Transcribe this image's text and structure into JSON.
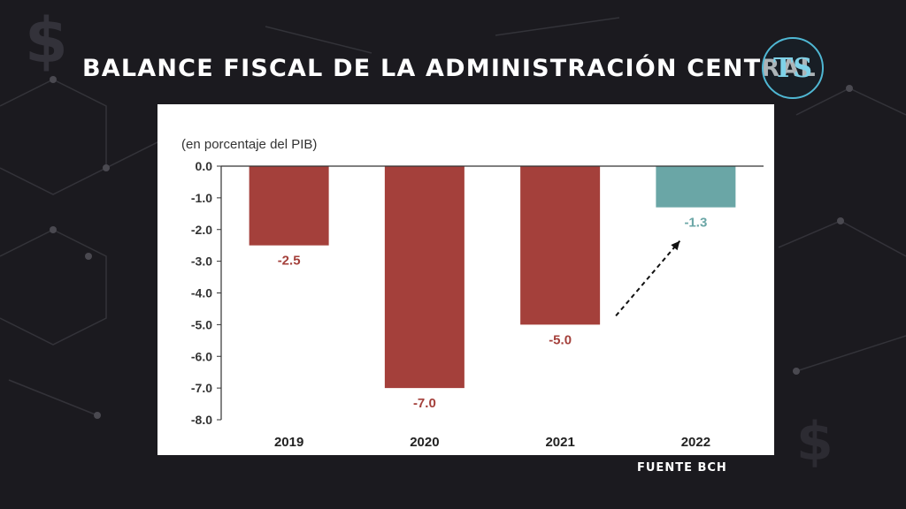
{
  "header": {
    "title": "BALANCE FISCAL DE LA ADMINISTRACIÓN CENTRAL",
    "logo_text": "TS"
  },
  "footer": {
    "source": "FUENTE BCH"
  },
  "colors": {
    "bar_primary": "#a4403b",
    "bar_highlight": "#6aa6a6",
    "label_primary": "#a4403b",
    "label_highlight": "#6aa6a6",
    "axis": "#333333"
  },
  "chart_data": {
    "type": "bar",
    "subtitle": "(en porcentaje del PIB)",
    "categories": [
      "2019",
      "2020",
      "2021",
      "2022"
    ],
    "values": [
      -2.5,
      -7.0,
      -5.0,
      -1.3
    ],
    "data_labels": [
      "-2.5",
      "-7.0",
      "-5.0",
      "-1.3"
    ],
    "highlight_index": 3,
    "ylim": [
      -8.0,
      0.0
    ],
    "yticks": [
      0.0,
      -1.0,
      -2.0,
      -3.0,
      -4.0,
      -5.0,
      -6.0,
      -7.0,
      -8.0
    ],
    "ytick_labels": [
      "0.0",
      "-1.0",
      "-2.0",
      "-3.0",
      "-4.0",
      "-5.0",
      "-6.0",
      "-7.0",
      "-8.0"
    ],
    "xlabel": "",
    "ylabel": "",
    "annotation": "dashed arrow from 2021 toward 2022",
    "grid": false
  }
}
